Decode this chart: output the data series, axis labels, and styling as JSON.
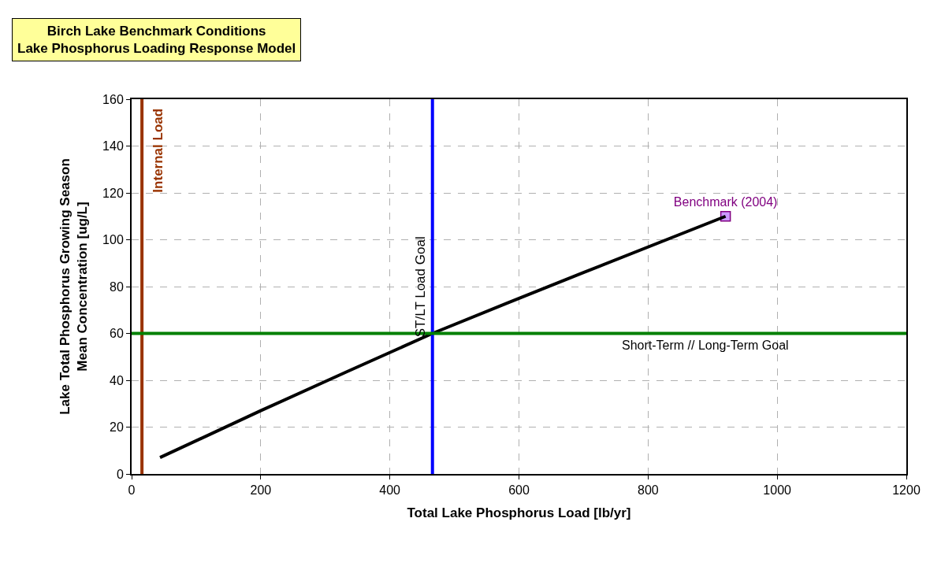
{
  "chart_data": {
    "type": "line",
    "title": "Birch Lake Benchmark Conditions\nLake Phosphorus Loading Response Model",
    "xlabel": "Total Lake Phosphorus Load [lb/yr]",
    "ylabel": "Lake Total Phosphorus Growing Season\nMean Concentration [ug/L]",
    "series": [
      {
        "color": "#000000",
        "x": [
          44,
          200,
          466,
          700,
          920
        ],
        "values": [
          7,
          27,
          60,
          86,
          110
        ],
        "marker": "none"
      },
      {
        "name": "Benchmark (2004)",
        "type": "scatter",
        "color": "#cc99ff",
        "x": [
          920
        ],
        "values": [
          110
        ],
        "marker": "square"
      }
    ],
    "ref_lines": [
      {
        "axis": "x",
        "value": 16,
        "label": "Internal Load",
        "color": "#993300"
      },
      {
        "axis": "x",
        "value": 466,
        "label": "ST/LT Load Goal",
        "color": "#0000ff"
      },
      {
        "axis": "y",
        "value": 60,
        "label": "Short-Term // Long-Term Goal",
        "color": "#008000"
      }
    ],
    "xlim": [
      0,
      1200
    ],
    "xticks": [
      0,
      200,
      400,
      600,
      800,
      1000,
      1200
    ],
    "ylim": [
      0,
      160
    ],
    "yticks": [
      0,
      20,
      40,
      60,
      80,
      100,
      120,
      140,
      160
    ],
    "grid": true,
    "legend": false
  }
}
